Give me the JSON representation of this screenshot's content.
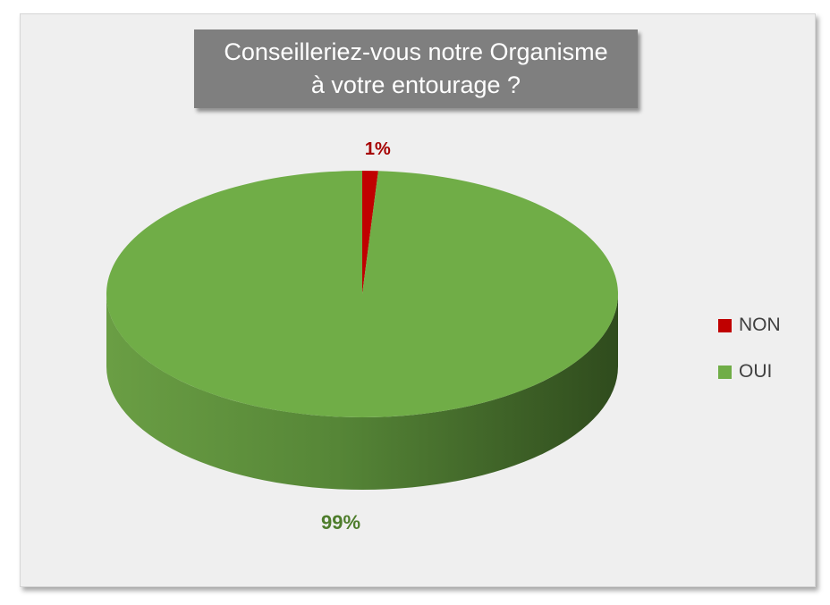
{
  "chart_data": {
    "type": "pie",
    "title_lines": [
      "Conseilleriez-vous notre Organisme",
      "à votre entourage ?"
    ],
    "slices": [
      {
        "label": "NON",
        "value": 1,
        "data_label": "1%",
        "color": "#c00000",
        "label_color": "#a50000"
      },
      {
        "label": "OUI",
        "value": 99,
        "data_label": "99%",
        "color": "#70ad47",
        "label_color": "#4e7d2c"
      }
    ],
    "legend_position": "right",
    "style": "3d"
  }
}
